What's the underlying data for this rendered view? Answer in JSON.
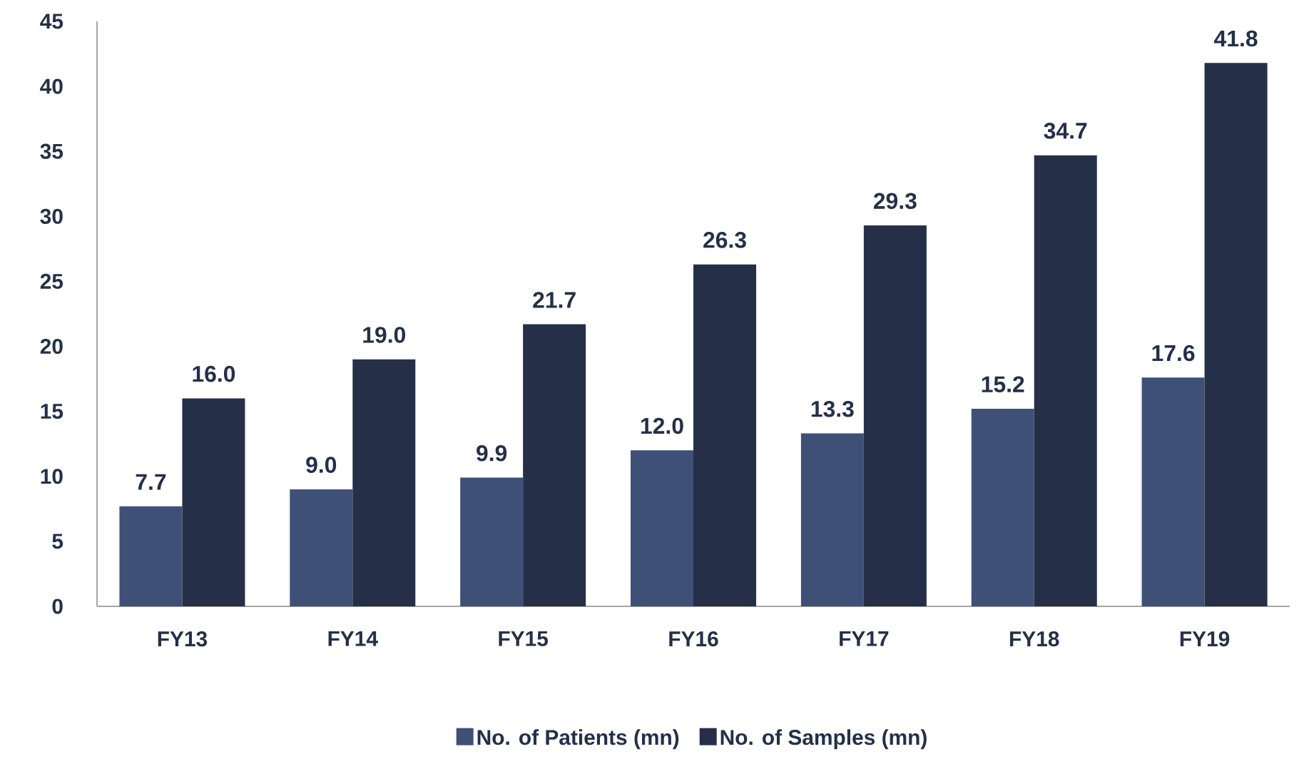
{
  "chart_data": {
    "type": "bar",
    "categories": [
      "FY13",
      "FY14",
      "FY15",
      "FY16",
      "FY17",
      "FY18",
      "FY19"
    ],
    "series": [
      {
        "name": "No. of Patients (mn)",
        "color": "#3f5077",
        "values": [
          7.7,
          9.0,
          9.9,
          12.0,
          13.3,
          15.2,
          17.6
        ],
        "value_labels": [
          "7.7",
          "9.0",
          "9.9",
          "12.0",
          "13.3",
          "15.2",
          "17.6"
        ]
      },
      {
        "name": "No. of Samples (mn)",
        "color": "#252f48",
        "values": [
          16.0,
          19.0,
          21.7,
          26.3,
          29.3,
          34.7,
          41.8
        ],
        "value_labels": [
          "16.0",
          "19.0",
          "21.7",
          "26.3",
          "29.3",
          "34.7",
          "41.8"
        ]
      }
    ],
    "ylim": [
      0,
      45
    ],
    "yticks": [
      0,
      5,
      10,
      15,
      20,
      25,
      30,
      35,
      40,
      45
    ],
    "grid": false,
    "legend": "bottom"
  }
}
